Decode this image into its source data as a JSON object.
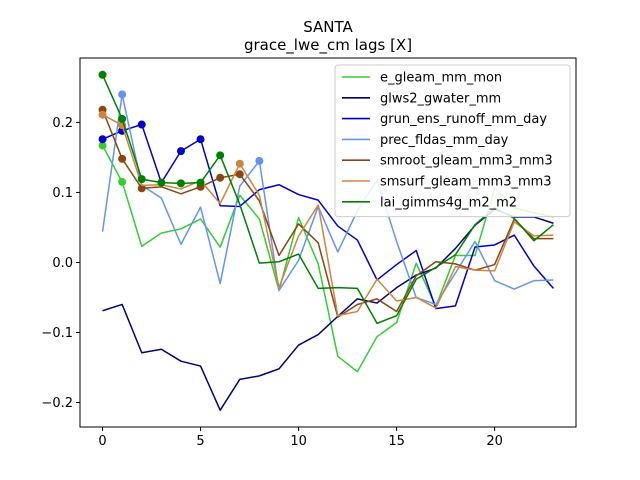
{
  "chart_data": {
    "type": "line",
    "title": "SANTA",
    "subtitle": "grace_lwe_cm lags [X]",
    "xlabel": "",
    "ylabel": "",
    "xlim": [
      -1.15,
      24.15
    ],
    "ylim": [
      -0.235,
      0.292
    ],
    "xticks": [
      0,
      5,
      10,
      15,
      20
    ],
    "yticks": [
      -0.2,
      -0.1,
      0.0,
      0.1,
      0.2
    ],
    "xtick_labels": [
      "0",
      "5",
      "10",
      "15",
      "20"
    ],
    "ytick_labels": [
      "−0.2",
      "−0.1",
      "0.0",
      "0.1",
      "0.2"
    ],
    "grid": false,
    "legend_position": "top-right",
    "x": [
      0,
      1,
      2,
      3,
      4,
      5,
      6,
      7,
      8,
      9,
      10,
      11,
      12,
      13,
      14,
      15,
      16,
      17,
      18,
      19,
      20,
      21,
      22,
      23
    ],
    "series": [
      {
        "name": "e_gleam_mm_mon",
        "color": "#32cd32",
        "values": [
          0.167,
          0.115,
          0.023,
          0.042,
          0.048,
          0.062,
          0.022,
          0.096,
          0.062,
          -0.04,
          0.064,
          -0.002,
          -0.134,
          -0.156,
          -0.106,
          -0.086,
          -0.001,
          -0.063,
          0.01,
          0.01,
          0.106,
          0.078,
          0.071,
          0.065
        ],
        "markers": [
          [
            0,
            0.167
          ],
          [
            1,
            0.115
          ]
        ]
      },
      {
        "name": "glws2_gwater_mm",
        "color": "#000080",
        "values": [
          -0.069,
          -0.06,
          -0.129,
          -0.124,
          -0.141,
          -0.148,
          -0.211,
          -0.167,
          -0.162,
          -0.152,
          -0.118,
          -0.103,
          -0.077,
          -0.052,
          -0.058,
          -0.036,
          -0.018,
          -0.008,
          0.02,
          0.053,
          0.076,
          0.065,
          0.065,
          0.056
        ],
        "markers": []
      },
      {
        "name": "grun_ens_runoff_mm_day",
        "color": "#0000cd",
        "values": [
          0.176,
          0.188,
          0.197,
          0.114,
          0.159,
          0.176,
          0.081,
          0.08,
          0.104,
          0.111,
          0.097,
          0.089,
          0.052,
          0.032,
          -0.025,
          -0.003,
          0.017,
          -0.066,
          -0.062,
          0.022,
          0.025,
          0.039,
          -0.005,
          -0.037
        ],
        "markers": [
          [
            0,
            0.176
          ],
          [
            1,
            0.188
          ],
          [
            2,
            0.197
          ],
          [
            4,
            0.159
          ],
          [
            5,
            0.176
          ]
        ]
      },
      {
        "name": "prec_fldas_mm_day",
        "color": "#6495ed",
        "values": [
          0.044,
          0.24,
          0.11,
          0.092,
          0.026,
          0.079,
          -0.03,
          0.109,
          0.145,
          -0.04,
          0.003,
          0.08,
          0.015,
          0.074,
          0.118,
          0.03,
          -0.05,
          -0.06,
          -0.015,
          0.03,
          -0.026,
          -0.038,
          -0.026,
          -0.025
        ],
        "markers": [
          [
            1,
            0.24
          ],
          [
            8,
            0.145
          ]
        ]
      },
      {
        "name": "smroot_gleam_mm3_mm3",
        "color": "#8b4513",
        "values": [
          0.218,
          0.148,
          0.106,
          0.108,
          0.098,
          0.108,
          0.121,
          0.126,
          0.088,
          0.01,
          0.055,
          0.028,
          -0.078,
          -0.06,
          -0.052,
          -0.07,
          -0.019,
          0.001,
          -0.002,
          -0.011,
          -0.003,
          0.062,
          0.034,
          0.034
        ],
        "markers": [
          [
            0,
            0.218
          ],
          [
            1,
            0.148
          ],
          [
            2,
            0.106
          ],
          [
            5,
            0.108
          ],
          [
            6,
            0.121
          ],
          [
            7,
            0.126
          ]
        ]
      },
      {
        "name": "smsurf_gleam_mm3_mm3",
        "color": "#cd853f",
        "values": [
          0.211,
          0.196,
          0.11,
          0.111,
          0.105,
          0.117,
          0.084,
          0.141,
          0.096,
          -0.036,
          0.038,
          0.082,
          -0.076,
          -0.07,
          -0.024,
          -0.055,
          -0.05,
          -0.065,
          -0.006,
          -0.011,
          -0.012,
          0.058,
          0.038,
          0.039
        ],
        "markers": [
          [
            0,
            0.211
          ],
          [
            1,
            0.196
          ],
          [
            7,
            0.141
          ]
        ]
      },
      {
        "name": "lai_gimms4g_m2_m2",
        "color": "#008000",
        "values": [
          0.268,
          0.205,
          0.119,
          0.114,
          0.113,
          0.114,
          0.153,
          0.083,
          -0.001,
          0.001,
          0.012,
          -0.037,
          -0.036,
          -0.037,
          -0.087,
          -0.076,
          -0.024,
          -0.007,
          0.011,
          0.054,
          0.078,
          0.063,
          0.031,
          0.054
        ],
        "markers": [
          [
            0,
            0.268
          ],
          [
            1,
            0.205
          ],
          [
            2,
            0.119
          ],
          [
            3,
            0.114
          ],
          [
            4,
            0.113
          ],
          [
            5,
            0.114
          ],
          [
            6,
            0.153
          ]
        ]
      }
    ]
  }
}
